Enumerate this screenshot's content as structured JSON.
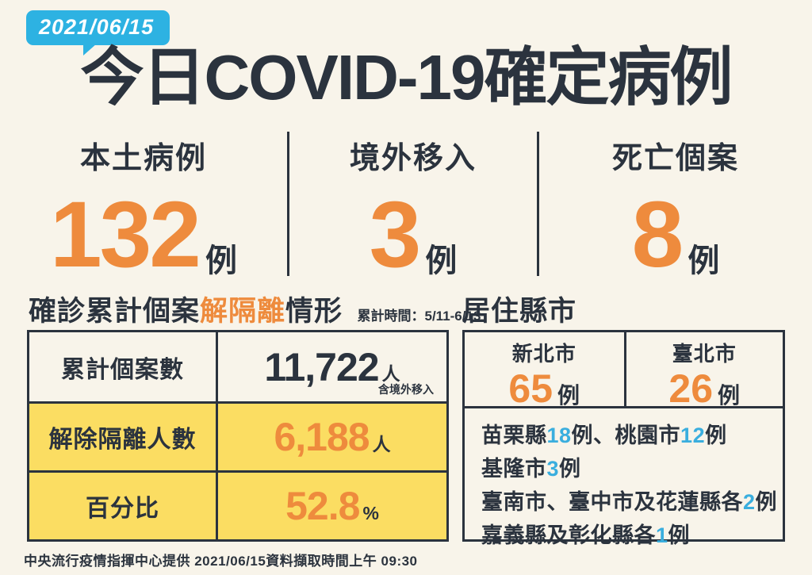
{
  "colors": {
    "background": "#f8f4ea",
    "ink": "#2b333e",
    "orange": "#ee8b3d",
    "yellow": "#fbdd62",
    "cyan_badge": "#2db2e2",
    "blue_highlight": "#3aaede"
  },
  "date_badge": "2021/06/15",
  "title": "今日COVID-19確定病例",
  "stats": [
    {
      "label": "本土病例",
      "value": "132",
      "unit": "例"
    },
    {
      "label": "境外移入",
      "value": "3",
      "unit": "例"
    },
    {
      "label": "死亡個案",
      "value": "8",
      "unit": "例"
    }
  ],
  "isolation_section": {
    "title_parts": [
      {
        "text": "確診累計個案",
        "color": "ink"
      },
      {
        "text": "解隔離",
        "color": "orange"
      },
      {
        "text": "情形",
        "color": "ink"
      }
    ],
    "period_note": "累計時間：5/11-6/13",
    "rows": [
      {
        "label": "累計個案數",
        "value": "11,722",
        "unit": "人",
        "note": "含境外移入"
      },
      {
        "label": "解除隔離人數",
        "value": "6,188",
        "unit": "人"
      },
      {
        "label": "百分比",
        "value": "52.8",
        "unit": "%"
      }
    ]
  },
  "residence_section": {
    "title": "居住縣市",
    "top_cities": [
      {
        "name": "新北市",
        "value": "65",
        "unit": "例"
      },
      {
        "name": "臺北市",
        "value": "26",
        "unit": "例"
      }
    ],
    "other_lines": [
      [
        {
          "t": "苗栗縣"
        },
        {
          "t": "18",
          "hl": true
        },
        {
          "t": "例、桃園市"
        },
        {
          "t": "12",
          "hl": true
        },
        {
          "t": "例"
        }
      ],
      [
        {
          "t": "基隆市"
        },
        {
          "t": "3",
          "hl": true
        },
        {
          "t": "例"
        }
      ],
      [
        {
          "t": "臺南市、臺中市及花蓮縣各"
        },
        {
          "t": "2",
          "hl": true
        },
        {
          "t": "例"
        }
      ],
      [
        {
          "t": "嘉義縣及彰化縣各"
        },
        {
          "t": "1",
          "hl": true
        },
        {
          "t": "例"
        }
      ]
    ]
  },
  "footer": "中央流行疫情指揮中心提供 2021/06/15資料擷取時間上午 09:30"
}
